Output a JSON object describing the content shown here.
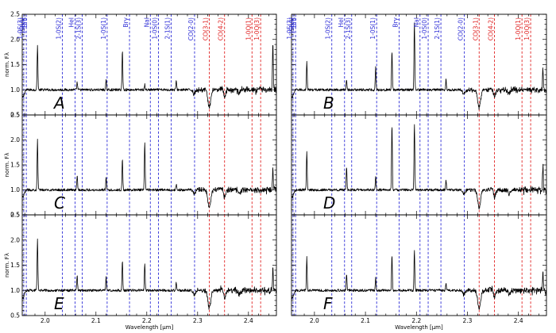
{
  "chart_data": {
    "type": "line",
    "layout": {
      "rows": 3,
      "cols": 2
    },
    "xlabel": "Wavelength [μm]",
    "ylabel": "norm. Fλ",
    "xlim": [
      1.955,
      2.455
    ],
    "ylim": [
      0.5,
      2.5
    ],
    "x_ticks": [
      2.0,
      2.1,
      2.2,
      2.3,
      2.4
    ],
    "x_tick_labels": [
      "2.0",
      "2.1",
      "2.2",
      "2.3",
      "2.4"
    ],
    "y_ticks": [
      0.5,
      1.0,
      1.5,
      2.0,
      2.5
    ],
    "y_tick_labels": [
      "0.5",
      "1.0",
      "1.5",
      "2.0",
      "2.5"
    ],
    "colors": {
      "blue": "#2b2bd6",
      "red": "#e02020",
      "spectrum": "#000000"
    },
    "line_markers": [
      {
        "label": "Brδ",
        "x": 1.945,
        "color": "blue"
      },
      {
        "label": "[SiVI]",
        "x": 1.963,
        "color": "blue"
      },
      {
        "label": "1-0S(3)",
        "x": 1.958,
        "color": "blue"
      },
      {
        "label": "1-0S(2)",
        "x": 2.034,
        "color": "blue"
      },
      {
        "label": "HeI",
        "x": 2.059,
        "color": "blue"
      },
      {
        "label": "2-1S(3)",
        "x": 2.073,
        "color": "blue"
      },
      {
        "label": "1-0S(1)",
        "x": 2.122,
        "color": "blue"
      },
      {
        "label": "Brγ",
        "x": 2.166,
        "color": "blue"
      },
      {
        "label": "NaI",
        "x": 2.207,
        "color": "blue"
      },
      {
        "label": "1-0S(0)",
        "x": 2.223,
        "color": "blue"
      },
      {
        "label": "2-1S(1)",
        "x": 2.248,
        "color": "blue"
      },
      {
        "label": "CO(2-0)",
        "x": 2.294,
        "color": "blue"
      },
      {
        "label": "CO(3-1)",
        "x": 2.323,
        "color": "red"
      },
      {
        "label": "CO(4-2)",
        "x": 2.353,
        "color": "red"
      },
      {
        "label": "1-0Q(1)",
        "x": 2.407,
        "color": "red"
      },
      {
        "label": "1-0Q(3)",
        "x": 2.424,
        "color": "red"
      }
    ],
    "panels": [
      {
        "label": "A",
        "peaks": [
          {
            "x": 1.985,
            "y": 1.87
          },
          {
            "x": 2.063,
            "y": 1.15
          },
          {
            "x": 2.12,
            "y": 1.18
          },
          {
            "x": 2.152,
            "y": 1.78
          },
          {
            "x": 2.196,
            "y": 1.1
          },
          {
            "x": 2.258,
            "y": 1.18
          },
          {
            "x": 2.448,
            "y": 1.97
          }
        ]
      },
      {
        "label": "B",
        "peaks": [
          {
            "x": 1.985,
            "y": 1.55
          },
          {
            "x": 2.063,
            "y": 1.2
          },
          {
            "x": 2.12,
            "y": 1.45
          },
          {
            "x": 2.152,
            "y": 1.75
          },
          {
            "x": 2.196,
            "y": 2.33
          },
          {
            "x": 2.258,
            "y": 1.2
          },
          {
            "x": 2.448,
            "y": 1.45
          }
        ]
      },
      {
        "label": "C",
        "peaks": [
          {
            "x": 1.985,
            "y": 2.0
          },
          {
            "x": 2.063,
            "y": 1.3
          },
          {
            "x": 2.12,
            "y": 1.25
          },
          {
            "x": 2.152,
            "y": 1.6
          },
          {
            "x": 2.196,
            "y": 1.95
          },
          {
            "x": 2.258,
            "y": 1.1
          },
          {
            "x": 2.448,
            "y": 1.4
          }
        ]
      },
      {
        "label": "D",
        "peaks": [
          {
            "x": 1.985,
            "y": 1.75
          },
          {
            "x": 2.063,
            "y": 1.45
          },
          {
            "x": 2.12,
            "y": 1.28
          },
          {
            "x": 2.152,
            "y": 2.32
          },
          {
            "x": 2.196,
            "y": 2.33
          },
          {
            "x": 2.258,
            "y": 1.2
          },
          {
            "x": 2.448,
            "y": 1.5
          }
        ]
      },
      {
        "label": "E",
        "peaks": [
          {
            "x": 1.985,
            "y": 2.0
          },
          {
            "x": 2.063,
            "y": 1.3
          },
          {
            "x": 2.12,
            "y": 1.25
          },
          {
            "x": 2.152,
            "y": 1.6
          },
          {
            "x": 2.196,
            "y": 1.55
          },
          {
            "x": 2.258,
            "y": 1.15
          },
          {
            "x": 2.448,
            "y": 1.45
          }
        ]
      },
      {
        "label": "F",
        "peaks": [
          {
            "x": 1.985,
            "y": 1.65
          },
          {
            "x": 2.063,
            "y": 1.3
          },
          {
            "x": 2.12,
            "y": 1.25
          },
          {
            "x": 2.152,
            "y": 1.7
          },
          {
            "x": 2.196,
            "y": 1.78
          },
          {
            "x": 2.258,
            "y": 1.15
          },
          {
            "x": 2.448,
            "y": 1.35
          }
        ]
      }
    ]
  }
}
